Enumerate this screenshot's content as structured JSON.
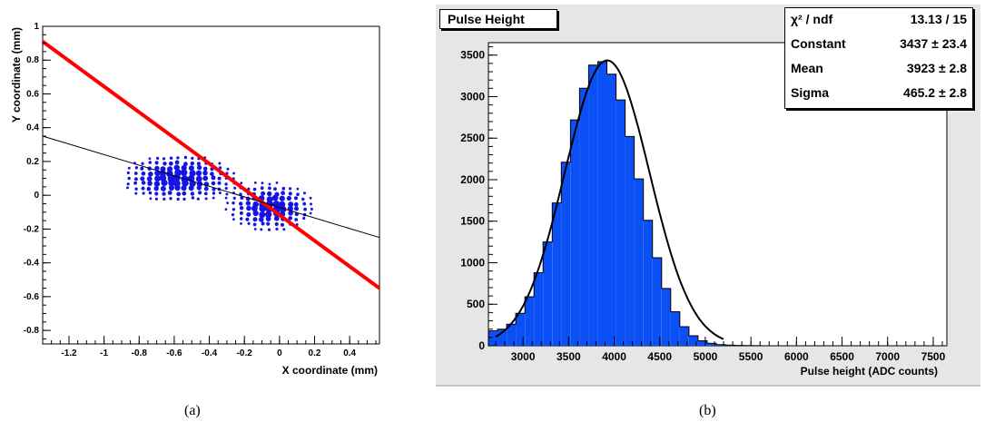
{
  "captions": {
    "left": "(a)",
    "right": "(b)"
  },
  "colors": {
    "scatter": "#1414e6",
    "fit_red": "#ff0000",
    "hist_fill": "#0a50f5",
    "frame_bg_b": "#e6e6e6"
  },
  "chart_data": [
    {
      "type": "scatter",
      "xlabel": "X coordinate (mm)",
      "ylabel": "Y coordinate (mm)",
      "xlim": [
        -1.35,
        0.57
      ],
      "ylim": [
        -0.88,
        1.0
      ],
      "x_ticks": [
        "-1.2",
        "-1",
        "-0.8",
        "-0.6",
        "-0.4",
        "-0.2",
        "0",
        "0.2",
        "0.4"
      ],
      "y_ticks": [
        "-0.8",
        "-0.6",
        "-0.4",
        "-0.2",
        "0",
        "0.2",
        "0.4",
        "0.6",
        "0.8",
        "1"
      ],
      "lines": [
        {
          "color": "#ff0000",
          "style": "thick",
          "points": [
            [
              -1.35,
              0.91
            ],
            [
              0.57,
              -0.55
            ]
          ]
        },
        {
          "color": "#000000",
          "style": "thin",
          "points": [
            [
              -1.35,
              0.35
            ],
            [
              0.57,
              -0.25
            ]
          ]
        }
      ],
      "clusters": [
        {
          "x": -0.58,
          "y": 0.1,
          "sx": 0.16,
          "sy": 0.07
        },
        {
          "x": -0.05,
          "y": -0.07,
          "sx": 0.12,
          "sy": 0.07
        }
      ]
    },
    {
      "type": "histogram",
      "title": "Pulse Height",
      "xlabel": "Pulse height (ADC counts)",
      "ylabel": "",
      "xlim": [
        2620,
        7650
      ],
      "ylim": [
        0,
        3650
      ],
      "x_ticks": [
        "3000",
        "3500",
        "4000",
        "4500",
        "5000",
        "5500",
        "6000",
        "6500",
        "7000",
        "7500"
      ],
      "y_ticks": [
        "0",
        "500",
        "1000",
        "1500",
        "2000",
        "2500",
        "3000",
        "3500"
      ],
      "bin_start": 2620,
      "bin_width": 100,
      "values": [
        180,
        200,
        260,
        390,
        590,
        880,
        1250,
        1720,
        2210,
        2720,
        3100,
        3380,
        3420,
        3270,
        2960,
        2520,
        2010,
        1510,
        1060,
        690,
        410,
        230,
        120,
        60,
        30,
        14,
        8,
        4,
        2,
        1
      ],
      "fit": {
        "constant": 3437,
        "mean": 3923,
        "sigma": 465.2
      },
      "stats": [
        {
          "label": "χ² / ndf",
          "value": "13.13 / 15"
        },
        {
          "label": "Constant",
          "value": "3437 ± 23.4"
        },
        {
          "label": "Mean",
          "value": "3923 ± 2.8"
        },
        {
          "label": "Sigma",
          "value": "465.2 ± 2.8"
        }
      ]
    }
  ]
}
